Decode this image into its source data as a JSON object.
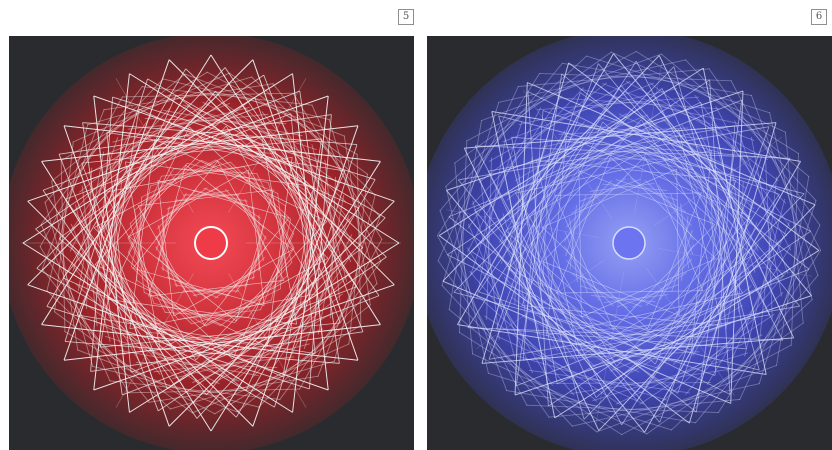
{
  "page": {
    "left_number": "5",
    "right_number": "6"
  },
  "panels": [
    {
      "name": "red-spirograph",
      "background": "#2a2b2e",
      "glow_inner": "#ff4b57",
      "glow_mid": "#c3262f",
      "glow_outer": "#5a1f22",
      "center_fill": "#ef3b47",
      "center_stroke": "#ffffff",
      "line_color": "#f3f3f3"
    },
    {
      "name": "blue-spirograph",
      "background": "#2a2b2e",
      "glow_inner": "#9ba6ff",
      "glow_mid": "#4d56db",
      "glow_outer": "#1f2450",
      "center_fill": "#6d74f0",
      "center_stroke": "#d9ddff",
      "line_color": "#dfe4ff"
    }
  ]
}
